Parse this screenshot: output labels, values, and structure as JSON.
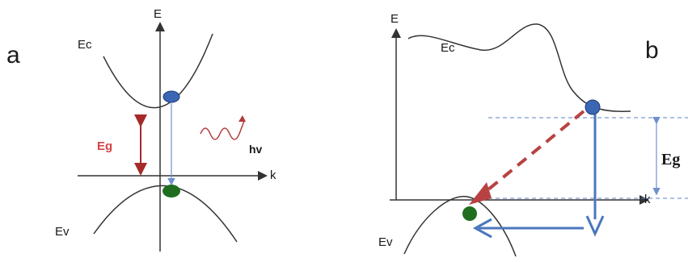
{
  "panel_a": {
    "letter": "a",
    "axis_e": "E",
    "axis_k": "k",
    "ec": "Ec",
    "ev": "Ev",
    "eg": "Eg",
    "hv": "hv"
  },
  "panel_b": {
    "letter": "b",
    "axis_e": "E",
    "axis_k": "k",
    "ec": "Ec",
    "ev": "Ev",
    "eg": "Eg"
  },
  "colors": {
    "electron": "#3b66b3",
    "hole": "#1f6e1f",
    "eg_red": "#a52a2a",
    "dashed_red": "#b84242",
    "blue_arrow": "#4a77bd",
    "curve": "#333333"
  }
}
